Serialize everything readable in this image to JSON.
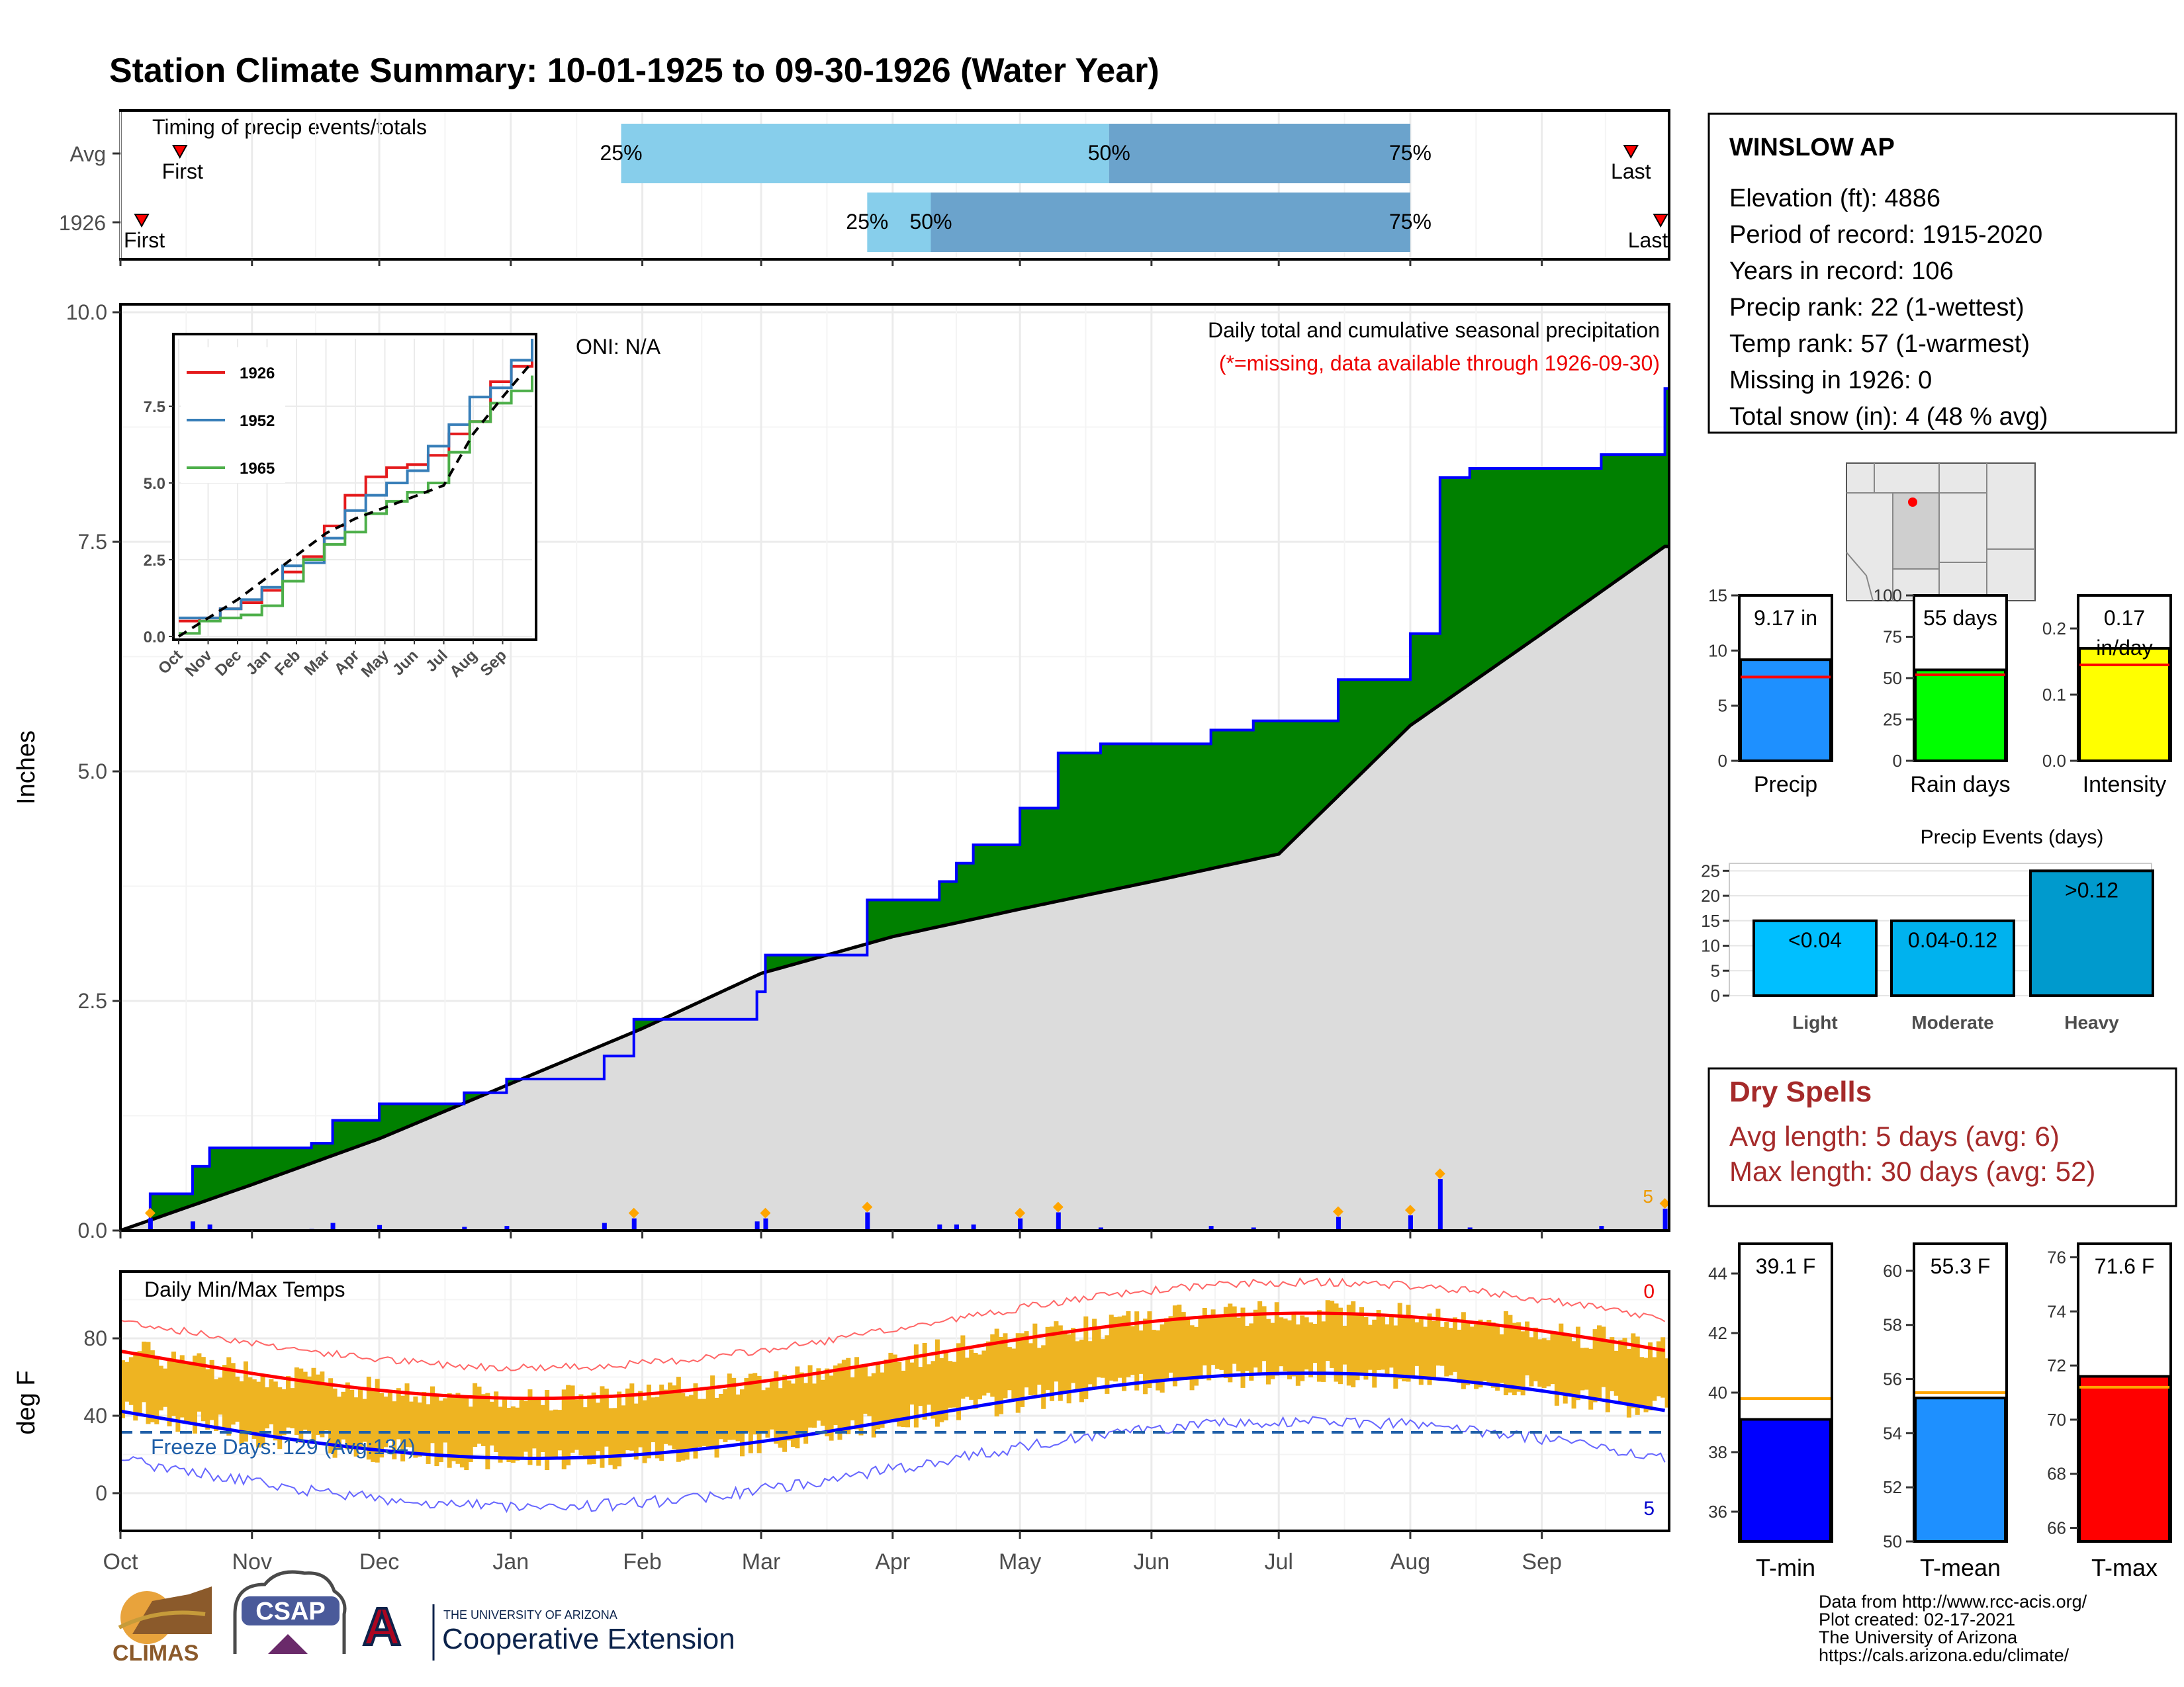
{
  "title": "Station Climate Summary: 10-01-1925 to 09-30-1926 (Water Year)",
  "colors": {
    "title": "#8B2500",
    "light_blue": "#87CEEB",
    "mid_blue": "#6BA3CC",
    "green": "#008000",
    "brown": "#8B5A00",
    "cum_grey": "#DCDCDC",
    "line_blue": "#0000FF",
    "tmax_red": "#FF0000",
    "temp_orange": "#EEB422",
    "red_text": "#EE0000",
    "dry_spell": "#A52A2A",
    "precip_bar": "#1E90FF",
    "rain_bar": "#00FF00",
    "int_bar": "#FFFF00",
    "tmin_bar": "#0000FF",
    "tmean_bar": "#1E90FF",
    "tmaxbar": "#FF0000",
    "events_light": "#00BFFF",
    "events_mod": "#00B2EE",
    "events_heavy": "#009ACD"
  },
  "timing": {
    "label": "Timing of precip events/totals",
    "rows": [
      {
        "name": "Avg",
        "first_label": "First",
        "last_label": "Last",
        "p25_label": "25%",
        "p50_label": "50%",
        "p75_label": "75%",
        "first": "1925-10-15",
        "p25": "1926-01-27",
        "p50": "1926-05-22",
        "p75": "1926-08-01",
        "last": "1926-09-22"
      },
      {
        "name": "1926",
        "first_label": "First",
        "last_label": "Last",
        "p25_label": "25%",
        "p50_label": "50%",
        "p75_label": "75%",
        "first": "1925-10-06",
        "p25": "1926-03-26",
        "p50": "1926-04-10",
        "p75": "1926-08-01",
        "last": "1926-09-29"
      }
    ]
  },
  "months": [
    "Oct",
    "Nov",
    "Dec",
    "Jan",
    "Feb",
    "Mar",
    "Apr",
    "May",
    "Jun",
    "Jul",
    "Aug",
    "Sep"
  ],
  "precip_chart": {
    "ylabel": "Inches",
    "yticks": [
      "0.0",
      "2.5",
      "5.0",
      "7.5",
      "10.0"
    ],
    "ylim": [
      0,
      10
    ],
    "oni": "ONI: N/A",
    "note1": "Daily total and cumulative seasonal precipitation",
    "note2": "(*=missing, data available through 1926-09-30)",
    "corner_count": "5"
  },
  "inset": {
    "yticks": [
      "0.0",
      "2.5",
      "5.0",
      "7.5"
    ],
    "months": [
      "Oct",
      "Nov",
      "Dec",
      "Jan",
      "Feb",
      "Mar",
      "Apr",
      "May",
      "Jun",
      "Jul",
      "Aug",
      "Sep"
    ],
    "legend": [
      "1926",
      "1952",
      "1965"
    ],
    "colors": [
      "#E41A1C",
      "#377EB8",
      "#4DAF4A"
    ]
  },
  "temp_chart": {
    "ylabel": "deg F",
    "title": "Daily Min/Max Temps",
    "yticks": [
      "0",
      "40",
      "80"
    ],
    "freeze_label": "Freeze Days: 129 (Avg:134)",
    "top_count": "0",
    "bottom_count": "5"
  },
  "station": {
    "name": "WINSLOW AP",
    "lines": [
      "Elevation (ft): 4886",
      "Period of record: 1915-2020",
      "Years in record: 106",
      "Precip rank: 22 (1-wettest)",
      "Temp rank: 57 (1-warmest)",
      "Missing in 1926: 0",
      "Total snow (in): 4 (48 % avg)"
    ]
  },
  "mini_bars": [
    {
      "label": "Precip",
      "value_label": "9.17 in",
      "value": 9.17,
      "avg": 7.6,
      "max": 15,
      "ticks": [
        "0",
        "5",
        "10",
        "15"
      ]
    },
    {
      "label": "Rain days",
      "value_label": "55 days",
      "value": 55,
      "avg": 52,
      "max": 100,
      "ticks": [
        "0",
        "25",
        "50",
        "75",
        "100"
      ]
    },
    {
      "label": "Intensity",
      "value_label": "0.17 in/day",
      "value": 0.17,
      "avg": 0.145,
      "max": 0.25,
      "ticks": [
        "0.0",
        "0.1",
        "0.2"
      ]
    }
  ],
  "events": {
    "title": "Precip Events (days)",
    "ticks": [
      "0",
      "5",
      "10",
      "15",
      "20",
      "25"
    ],
    "bars": [
      {
        "label": "Light",
        "value_label": "<0.04",
        "value": 15
      },
      {
        "label": "Moderate",
        "value_label": "0.04-0.12",
        "value": 15
      },
      {
        "label": "Heavy",
        "value_label": ">0.12",
        "value": 25
      }
    ]
  },
  "dry_spells": {
    "title": "Dry Spells",
    "avg": "Avg length: 5 days (avg: 6)",
    "max": "Max length: 30 days (avg: 52)"
  },
  "temp_bars": [
    {
      "label": "T-min",
      "value_label": "39.1 F",
      "value": 39.1,
      "avg": 39.8,
      "min": 35,
      "max": 45,
      "ticks": [
        "36",
        "38",
        "40",
        "42",
        "44"
      ]
    },
    {
      "label": "T-mean",
      "value_label": "55.3 F",
      "value": 55.3,
      "avg": 55.5,
      "min": 50,
      "max": 61,
      "ticks": [
        "50",
        "52",
        "54",
        "56",
        "58",
        "60"
      ]
    },
    {
      "label": "T-max",
      "value_label": "71.6 F",
      "value": 71.6,
      "avg": 71.2,
      "min": 65.5,
      "max": 76.5,
      "ticks": [
        "66",
        "68",
        "70",
        "72",
        "74",
        "76"
      ]
    }
  ],
  "footer": {
    "lines": [
      "Data from http://www.rcc-acis.org/",
      "Plot created: 02-17-2021",
      "The University of Arizona",
      "https://cals.arizona.edu/climate/"
    ],
    "climas": "CLIMAS",
    "csap": "CSAP",
    "ua_small": "THE UNIVERSITY OF ARIZONA",
    "ua_big": "Cooperative Extension",
    "ua_letter": "A"
  },
  "chart_data": {
    "type": "area",
    "title": "Station Climate Summary: 10-01-1925 to 09-30-1926 (Water Year)",
    "ylabel": "Inches",
    "ylim": [
      0,
      10
    ],
    "series": [
      {
        "name": "1926",
        "x": [
          "1925-10-01",
          "1925-10-08",
          "1925-10-18",
          "1925-10-22",
          "1925-11-15",
          "1925-11-20",
          "1925-12-01",
          "1925-12-21",
          "1925-12-31",
          "1926-01-23",
          "1926-01-30",
          "1926-02-28",
          "1926-03-02",
          "1926-03-26",
          "1926-04-12",
          "1926-04-16",
          "1926-04-20",
          "1926-05-01",
          "1926-05-10",
          "1926-05-20",
          "1926-06-15",
          "1926-06-25",
          "1926-07-15",
          "1926-08-01",
          "1926-08-08",
          "1926-08-15",
          "1926-08-31",
          "1926-09-15",
          "1926-09-26",
          "1926-09-30"
        ],
        "values": [
          0.0,
          0.4,
          0.7,
          0.9,
          0.95,
          1.2,
          1.38,
          1.5,
          1.65,
          1.9,
          2.3,
          2.6,
          3.0,
          3.6,
          3.8,
          4.0,
          4.2,
          4.6,
          5.2,
          5.3,
          5.45,
          5.55,
          6.0,
          6.5,
          8.2,
          8.3,
          8.3,
          8.45,
          8.45,
          9.17
        ]
      },
      {
        "name": "Avg",
        "x": [
          "1925-10-01",
          "1925-11-01",
          "1925-12-01",
          "1926-01-01",
          "1926-02-01",
          "1926-03-01",
          "1926-04-01",
          "1926-05-01",
          "1926-06-01",
          "1926-07-01",
          "1926-08-01",
          "1926-09-01",
          "1926-09-30"
        ],
        "values": [
          0.0,
          0.5,
          1.0,
          1.6,
          2.2,
          2.8,
          3.2,
          3.5,
          3.8,
          4.1,
          5.5,
          6.5,
          7.45
        ]
      }
    ]
  }
}
